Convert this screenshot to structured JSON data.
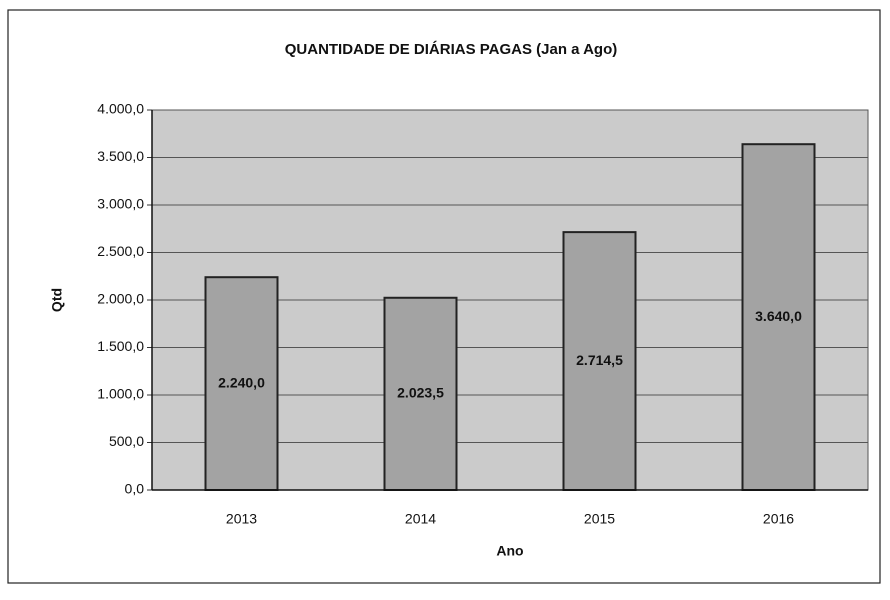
{
  "chart_data": {
    "type": "bar",
    "title": "QUANTIDADE DE DIÁRIAS PAGAS (Jan a Ago)",
    "x_label": "Ano",
    "y_label": "Qtd",
    "categories": [
      "2013",
      "2014",
      "2015",
      "2016"
    ],
    "values": [
      2240,
      2023.5,
      2714.5,
      3640
    ],
    "value_labels": [
      "2.240,0",
      "2.023,5",
      "2.714,5",
      "3.640,0"
    ],
    "color": "#a3a3a3",
    "ylim": [
      0,
      4000
    ],
    "yticks": [
      {
        "value": 0,
        "label": "0,0"
      },
      {
        "value": 500,
        "label": "500,0"
      },
      {
        "value": 1000,
        "label": "1.000,0"
      },
      {
        "value": 1500,
        "label": "1.500,0"
      },
      {
        "value": 2000,
        "label": "2.000,0"
      },
      {
        "value": 2500,
        "label": "2.500,0"
      },
      {
        "value": 3000,
        "label": "3.000,0"
      },
      {
        "value": 3500,
        "label": "3.500,0"
      },
      {
        "value": 4000,
        "label": "4.000,0"
      }
    ],
    "grid": true
  }
}
